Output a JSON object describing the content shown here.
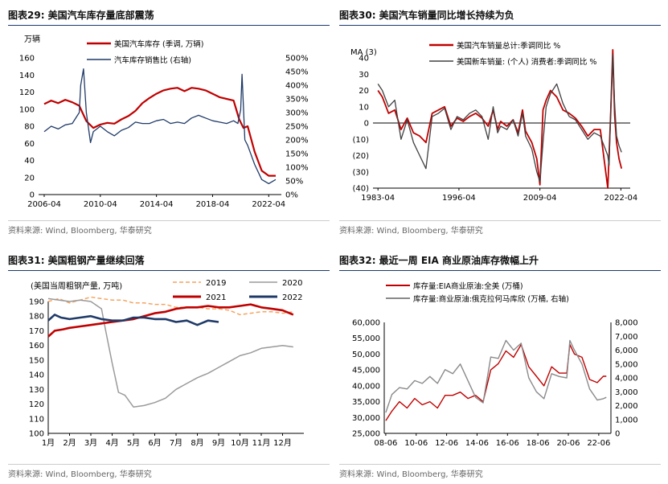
{
  "charts": [
    {
      "id": "c29",
      "title": "图表29:  美国汽车库存量底部震荡",
      "source": "资料来源: Wind, Bloomberg, 华泰研究"
    },
    {
      "id": "c30",
      "title": "图表30:  美国汽车销量同比增长持续为负",
      "source": "资料来源: Wind, Bloomberg, 华泰研究"
    },
    {
      "id": "c31",
      "title": "图表31:  美国粗钢产量继续回落",
      "source": "资料来源: Wind, Bloomberg, 华泰研究"
    },
    {
      "id": "c32",
      "title": "图表32:  最近一周 EIA 商业原油库存微幅上升",
      "source": "资料来源: Wind, Bloomberg, 华泰研究"
    }
  ],
  "colors": {
    "red": "#c00000",
    "navy": "#1f3a68",
    "gray": "#8a8a8a",
    "orange": "#f4a460",
    "rule": "#1a3a6b",
    "axis": "#000000"
  },
  "chart_data": [
    {
      "type": "line",
      "unit_label": "万辆",
      "x_ticks": [
        "2006-04",
        "2010-04",
        "2014-04",
        "2018-04",
        "2022-04"
      ],
      "ylim": [
        0,
        160
      ],
      "y_ticks": [
        "0",
        "20",
        "40",
        "60",
        "80",
        "100",
        "120",
        "140",
        "160"
      ],
      "y2lim": [
        0,
        500
      ],
      "y2_ticks": [
        "0%",
        "50%",
        "100%",
        "150%",
        "200%",
        "250%",
        "300%",
        "350%",
        "400%",
        "450%",
        "500%"
      ],
      "legend": [
        "美国汽车库存 (季调, 万辆)",
        "汽车库存销售比 (右轴)"
      ],
      "series": [
        {
          "name": "美国汽车库存 (季调, 万辆)",
          "axis": "left",
          "color": "#c00000",
          "x": [
            2006.3,
            2006.8,
            2007.3,
            2007.8,
            2008.3,
            2008.8,
            2009.3,
            2009.8,
            2010.3,
            2010.8,
            2011.3,
            2011.8,
            2012.3,
            2012.8,
            2013.3,
            2013.8,
            2014.3,
            2014.8,
            2015.3,
            2015.8,
            2016.3,
            2016.8,
            2017.3,
            2017.8,
            2018.3,
            2018.8,
            2019.3,
            2019.8,
            2020.2,
            2020.5,
            2020.8,
            2021.3,
            2021.8,
            2022.3,
            2022.8
          ],
          "values": [
            106,
            110,
            107,
            111,
            108,
            104,
            86,
            78,
            82,
            84,
            83,
            88,
            92,
            98,
            107,
            113,
            118,
            122,
            124,
            125,
            121,
            125,
            124,
            122,
            118,
            114,
            112,
            110,
            88,
            78,
            80,
            50,
            28,
            22,
            22
          ]
        },
        {
          "name": "汽车库存销售比 (右轴)",
          "axis": "right",
          "color": "#1f3a68",
          "x": [
            2006.3,
            2006.8,
            2007.3,
            2007.8,
            2008.3,
            2008.8,
            2008.9,
            2009.1,
            2009.3,
            2009.6,
            2009.8,
            2010.3,
            2010.8,
            2011.3,
            2011.8,
            2012.3,
            2012.8,
            2013.3,
            2013.8,
            2014.3,
            2014.8,
            2015.3,
            2015.8,
            2016.3,
            2016.8,
            2017.3,
            2017.8,
            2018.3,
            2018.8,
            2019.3,
            2019.8,
            2020.1,
            2020.3,
            2020.4,
            2020.6,
            2020.8,
            2021.3,
            2021.8,
            2022.3,
            2022.8
          ],
          "values": [
            230,
            250,
            240,
            255,
            260,
            300,
            400,
            460,
            300,
            190,
            230,
            250,
            230,
            215,
            235,
            245,
            265,
            260,
            260,
            270,
            275,
            260,
            265,
            260,
            280,
            290,
            280,
            270,
            265,
            260,
            270,
            260,
            310,
            440,
            200,
            180,
            110,
            55,
            40,
            55
          ]
        }
      ]
    },
    {
      "type": "line",
      "unit_label": "MA (3)",
      "x_ticks": [
        "1983-04",
        "1996-04",
        "2009-04",
        "2022-04"
      ],
      "ylim": [
        -40,
        40
      ],
      "y_ticks": [
        "(40)",
        "(30)",
        "(20)",
        "(10)",
        "0",
        "10",
        "20",
        "30",
        "40"
      ],
      "legend": [
        "美国汽车销量总计:季调同比 %",
        "美国新车销量: (个人) 消费者:季调同比 %"
      ],
      "series": [
        {
          "name": "美国汽车销量总计:季调同比 %",
          "color": "#c00000",
          "x": [
            1983.3,
            1984,
            1985,
            1986,
            1987,
            1988,
            1989,
            1990,
            1991,
            1992,
            1993,
            1994,
            1995,
            1996,
            1997,
            1998,
            1999,
            2000,
            2001,
            2001.8,
            2002.5,
            2003,
            2004,
            2005,
            2005.8,
            2006.5,
            2007,
            2008,
            2008.8,
            2009.3,
            2009.8,
            2010.3,
            2011,
            2012,
            2013,
            2014,
            2015,
            2016,
            2017,
            2018,
            2019,
            2020.2,
            2020.4,
            2020.7,
            2021.0,
            2021.3,
            2021.6,
            2022.0,
            2022.4
          ],
          "values": [
            20,
            16,
            6,
            8,
            -4,
            3,
            -6,
            -8,
            -12,
            6,
            8,
            10,
            -2,
            3,
            1,
            4,
            6,
            3,
            -2,
            8,
            -4,
            1,
            -2,
            2,
            -6,
            8,
            -5,
            -12,
            -22,
            -38,
            8,
            14,
            20,
            16,
            8,
            6,
            3,
            -2,
            -8,
            -4,
            -4,
            -40,
            -20,
            10,
            45,
            5,
            -12,
            -22,
            -28
          ]
        },
        {
          "name": "美国新车销量: (个人) 消费者:季调同比 %",
          "color": "#404040",
          "x": [
            1983.3,
            1984,
            1985,
            1986,
            1987,
            1988,
            1989,
            1990,
            1991,
            1992,
            1993,
            1994,
            1995,
            1996,
            1997,
            1998,
            1999,
            2000,
            2001,
            2001.8,
            2002.5,
            2003,
            2004,
            2005,
            2005.8,
            2006.5,
            2007,
            2008,
            2008.8,
            2009.3,
            2009.8,
            2010.3,
            2011,
            2012,
            2013,
            2014,
            2015,
            2016,
            2017,
            2018,
            2019,
            2020.2,
            2020.4,
            2020.7,
            2021.0,
            2021.3,
            2021.6,
            2022.0,
            2022.4
          ],
          "values": [
            24,
            20,
            10,
            14,
            -10,
            2,
            -12,
            -20,
            -28,
            4,
            6,
            9,
            -4,
            4,
            2,
            6,
            8,
            4,
            -10,
            10,
            -6,
            -2,
            -4,
            2,
            -8,
            6,
            -8,
            -16,
            -30,
            -36,
            -12,
            10,
            18,
            24,
            12,
            4,
            2,
            -4,
            -10,
            -6,
            -8,
            -20,
            -26,
            12,
            42,
            12,
            -8,
            -14,
            -18
          ]
        }
      ]
    },
    {
      "type": "line",
      "unit_label": "(美国当周粗钢产量, 万吨)",
      "x_ticks": [
        "1月",
        "2月",
        "3月",
        "4月",
        "5月",
        "6月",
        "7月",
        "8月",
        "9月",
        "10月",
        "11月",
        "12月"
      ],
      "ylim": [
        100,
        190
      ],
      "y_ticks": [
        "100",
        "110",
        "120",
        "130",
        "140",
        "150",
        "160",
        "170",
        "180",
        "190"
      ],
      "legend": [
        "2019",
        "2020",
        "2021",
        "2022"
      ],
      "series": [
        {
          "name": "2019",
          "color": "#f4a460",
          "dash": "5,3",
          "x": [
            1,
            1.5,
            2,
            2.5,
            3,
            3.5,
            4,
            4.5,
            5,
            5.5,
            6,
            6.5,
            7,
            7.5,
            8,
            8.5,
            9,
            9.5,
            10,
            10.5,
            11,
            11.5,
            12,
            12.5
          ],
          "values": [
            190,
            192,
            189,
            191,
            193,
            192,
            191,
            191,
            189,
            189,
            188,
            188,
            186,
            186,
            186,
            185,
            185,
            184,
            181,
            182,
            183,
            183,
            182,
            183
          ]
        },
        {
          "name": "2020",
          "color": "#9a9a9a",
          "x": [
            1,
            1.5,
            2,
            2.5,
            3,
            3.5,
            3.7,
            4,
            4.3,
            4.6,
            5,
            5.5,
            6,
            6.5,
            7,
            7.5,
            8,
            8.5,
            9,
            9.5,
            10,
            10.5,
            11,
            11.5,
            12,
            12.5
          ],
          "values": [
            192,
            191,
            190,
            191,
            190,
            185,
            170,
            148,
            128,
            126,
            118,
            119,
            121,
            124,
            130,
            134,
            138,
            141,
            145,
            149,
            153,
            155,
            158,
            159,
            160,
            159
          ]
        },
        {
          "name": "2021",
          "color": "#c00000",
          "x": [
            1,
            1.3,
            1.7,
            2,
            2.5,
            3,
            3.5,
            4,
            4.5,
            5,
            5.5,
            6,
            6.5,
            7,
            7.5,
            8,
            8.5,
            9,
            9.5,
            10,
            10.5,
            11,
            11.5,
            12,
            12.5
          ],
          "values": [
            166,
            170,
            171,
            172,
            173,
            174,
            175,
            176,
            177,
            178,
            180,
            182,
            183,
            185,
            186,
            186,
            187,
            186,
            186,
            187,
            188,
            186,
            185,
            184,
            181
          ]
        },
        {
          "name": "2022",
          "color": "#1f3a68",
          "x": [
            1,
            1.3,
            1.6,
            2,
            2.5,
            3,
            3.5,
            4,
            4.5,
            5,
            5.5,
            6,
            6.5,
            7,
            7.5,
            8,
            8.5,
            9
          ],
          "values": [
            177,
            181,
            179,
            178,
            179,
            180,
            178,
            177,
            177,
            179,
            179,
            178,
            178,
            176,
            177,
            174,
            177,
            176
          ]
        }
      ]
    },
    {
      "type": "line",
      "x_ticks": [
        "08-06",
        "10-06",
        "12-06",
        "14-06",
        "16-06",
        "18-06",
        "20-06",
        "22-06"
      ],
      "ylim": [
        25000,
        60000
      ],
      "y_ticks": [
        "25,000",
        "30,000",
        "35,000",
        "40,000",
        "45,000",
        "50,000",
        "55,000",
        "60,000"
      ],
      "y2lim": [
        0,
        8000
      ],
      "y2_ticks": [
        "0",
        "1,000",
        "2,000",
        "3,000",
        "4,000",
        "5,000",
        "6,000",
        "7,000",
        "8,000"
      ],
      "legend": [
        "库存量:EIA商业原油:全美 (万桶)",
        "库存量:商业原油:俄克拉何马库欣 (万桶, 右轴)"
      ],
      "series": [
        {
          "name": "库存量:EIA商业原油:全美 (万桶)",
          "axis": "left",
          "color": "#c00000",
          "x": [
            2008.4,
            2008.8,
            2009.3,
            2009.8,
            2010.3,
            2010.8,
            2011.3,
            2011.8,
            2012.3,
            2012.8,
            2013.3,
            2013.8,
            2014.3,
            2014.8,
            2015.3,
            2015.8,
            2016.3,
            2016.8,
            2017.3,
            2017.8,
            2018.3,
            2018.8,
            2019.3,
            2019.8,
            2020.3,
            2020.5,
            2020.8,
            2021.3,
            2021.8,
            2022.3,
            2022.7,
            2022.9
          ],
          "values": [
            29000,
            32000,
            35000,
            33000,
            36000,
            34000,
            35000,
            33000,
            37000,
            37000,
            38000,
            36000,
            37000,
            35000,
            45000,
            47000,
            51000,
            49000,
            53000,
            46000,
            43000,
            40000,
            46000,
            44000,
            44000,
            53000,
            50000,
            49000,
            42000,
            41000,
            43000,
            43000
          ]
        },
        {
          "name": "库存量:商业原油:俄克拉何马库欣 (万桶, 右轴)",
          "axis": "right",
          "color": "#8a8a8a",
          "x": [
            2008.4,
            2008.8,
            2009.3,
            2009.8,
            2010.3,
            2010.8,
            2011.3,
            2011.8,
            2012.3,
            2012.8,
            2013.3,
            2013.8,
            2014.3,
            2014.8,
            2015.3,
            2015.8,
            2016.3,
            2016.8,
            2017.3,
            2017.8,
            2018.3,
            2018.8,
            2019.3,
            2019.8,
            2020.3,
            2020.5,
            2020.8,
            2021.3,
            2021.8,
            2022.3,
            2022.7,
            2022.9
          ],
          "values": [
            1500,
            2800,
            3300,
            3200,
            3800,
            3600,
            4100,
            3600,
            4600,
            4300,
            5000,
            3800,
            2600,
            2200,
            5500,
            5400,
            6700,
            6000,
            6500,
            4000,
            3000,
            2500,
            4300,
            4100,
            4000,
            6700,
            6000,
            5000,
            3200,
            2400,
            2500,
            2600
          ]
        }
      ]
    }
  ]
}
